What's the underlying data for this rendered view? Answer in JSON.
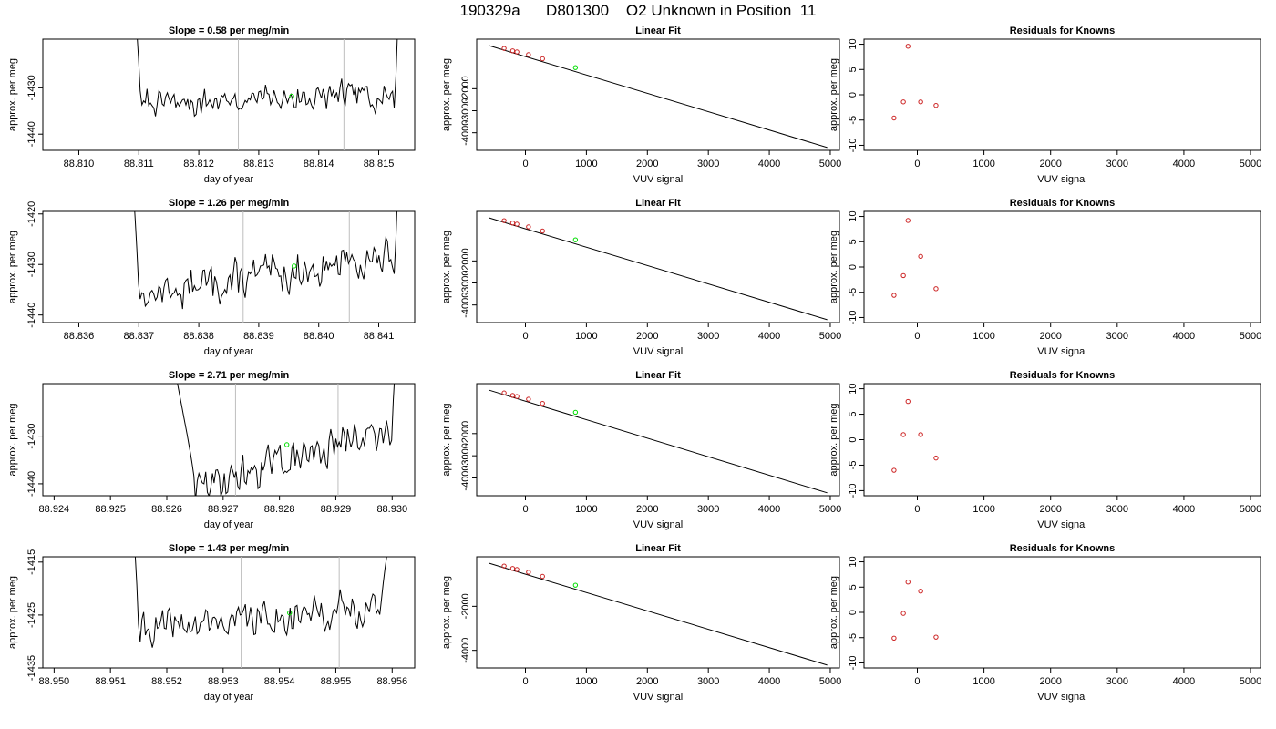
{
  "page": {
    "title": "190329a      D801300    O2 Unknown in Position  11"
  },
  "chart_data": [
    {
      "type": "line",
      "panel": "trace",
      "title": "Slope =  0.58  per meg/min",
      "xlabel": "day of year",
      "ylabel": "approx. per meg",
      "xlim": [
        88.8094,
        88.8156
      ],
      "ylim": [
        -1443.5,
        -1419.5
      ],
      "xticks": [
        88.81,
        88.811,
        88.812,
        88.813,
        88.814,
        88.815
      ],
      "xtick_labels": [
        "88.810",
        "88.811",
        "88.812",
        "88.813",
        "88.814",
        "88.815"
      ],
      "yticks": [
        -1440,
        -1430
      ],
      "ytick_labels": [
        "-1440",
        "-1430"
      ],
      "vlines": [
        88.81266,
        88.81442
      ],
      "trace_start": 88.8106,
      "trace_end": 88.8154,
      "flat_start": 88.81103,
      "flat_end": 88.81528,
      "baseline_start": -1433.5,
      "baseline_end": -1431.5,
      "noise": 2.2,
      "seed": 7,
      "unknown_point": {
        "x": 88.81355,
        "y": -1431.8
      }
    },
    {
      "type": "scatter",
      "panel": "fit",
      "title": "Linear Fit",
      "xlabel": "VUV signal",
      "ylabel": "approx. per meg",
      "xlim": [
        -800,
        5150
      ],
      "ylim": [
        -4800,
        250
      ],
      "xticks": [
        0,
        1000,
        2000,
        3000,
        4000,
        5000
      ],
      "xtick_labels": [
        "0",
        "1000",
        "2000",
        "3000",
        "4000",
        "5000"
      ],
      "yticks": [
        -4000,
        -3000,
        -2000
      ],
      "ytick_labels": [
        "-4000",
        "-3000",
        "-2000"
      ],
      "fit_line": {
        "x": [
          -600,
          4950
        ],
        "y": [
          -40,
          -4670
        ]
      },
      "known_points": {
        "x": [
          -350,
          -210,
          -140,
          50,
          280
        ],
        "y": [
          -170,
          -280,
          -330,
          -450,
          -640
        ]
      },
      "unknown_point": {
        "x": 820,
        "y": -1040
      }
    },
    {
      "type": "scatter",
      "panel": "residuals",
      "title": "Residuals for Knowns",
      "xlabel": "VUV signal",
      "ylabel": "approx. per meg",
      "xlim": [
        -800,
        5150
      ],
      "ylim": [
        -11,
        11
      ],
      "xticks": [
        0,
        1000,
        2000,
        3000,
        4000,
        5000
      ],
      "xtick_labels": [
        "0",
        "1000",
        "2000",
        "3000",
        "4000",
        "5000"
      ],
      "yticks": [
        -10,
        -5,
        0,
        5,
        10
      ],
      "ytick_labels": [
        "-10",
        "-5",
        "0",
        "5",
        "10"
      ],
      "points": {
        "x": [
          -350,
          -210,
          -140,
          50,
          280
        ],
        "y": [
          -4.6,
          -1.4,
          9.6,
          -1.4,
          -2.1
        ]
      }
    },
    {
      "type": "line",
      "panel": "trace",
      "title": "Slope =  1.26  per meg/min",
      "xlabel": "day of year",
      "ylabel": "approx. per meg",
      "xlim": [
        88.8354,
        88.8416
      ],
      "ylim": [
        -1441.5,
        -1419.5
      ],
      "xticks": [
        88.836,
        88.837,
        88.838,
        88.839,
        88.84,
        88.841
      ],
      "xtick_labels": [
        "88.836",
        "88.837",
        "88.838",
        "88.839",
        "88.840",
        "88.841"
      ],
      "yticks": [
        -1440,
        -1430,
        -1420
      ],
      "ytick_labels": [
        "-1440",
        "-1430",
        "-1420"
      ],
      "vlines": [
        88.83874,
        88.84051
      ],
      "trace_start": 88.8366,
      "trace_end": 88.8414,
      "flat_start": 88.837,
      "flat_end": 88.84128,
      "baseline_start": -1436.0,
      "baseline_end": -1428.5,
      "noise": 2.6,
      "seed": 13,
      "unknown_point": {
        "x": 88.83959,
        "y": -1430.3
      }
    },
    {
      "type": "scatter",
      "panel": "fit",
      "title": "Linear Fit",
      "xlabel": "VUV signal",
      "ylabel": "approx. per meg",
      "xlim": [
        -800,
        5150
      ],
      "ylim": [
        -4800,
        250
      ],
      "xticks": [
        0,
        1000,
        2000,
        3000,
        4000,
        5000
      ],
      "xtick_labels": [
        "0",
        "1000",
        "2000",
        "3000",
        "4000",
        "5000"
      ],
      "yticks": [
        -4000,
        -3000,
        -2000
      ],
      "ytick_labels": [
        "-4000",
        "-3000",
        "-2000"
      ],
      "fit_line": {
        "x": [
          -600,
          4950
        ],
        "y": [
          -40,
          -4670
        ]
      },
      "known_points": {
        "x": [
          -350,
          -210,
          -140,
          50,
          280
        ],
        "y": [
          -170,
          -280,
          -330,
          -450,
          -640
        ]
      },
      "unknown_point": {
        "x": 820,
        "y": -1040
      }
    },
    {
      "type": "scatter",
      "panel": "residuals",
      "title": "Residuals for Knowns",
      "xlabel": "VUV signal",
      "ylabel": "approx. per meg",
      "xlim": [
        -800,
        5150
      ],
      "ylim": [
        -11,
        11
      ],
      "xticks": [
        0,
        1000,
        2000,
        3000,
        4000,
        5000
      ],
      "xtick_labels": [
        "0",
        "1000",
        "2000",
        "3000",
        "4000",
        "5000"
      ],
      "yticks": [
        -10,
        -5,
        0,
        5,
        10
      ],
      "ytick_labels": [
        "-10",
        "-5",
        "0",
        "5",
        "10"
      ],
      "points": {
        "x": [
          -350,
          -210,
          -140,
          50,
          280
        ],
        "y": [
          -5.6,
          -1.7,
          9.2,
          2.1,
          -4.3
        ]
      }
    },
    {
      "type": "line",
      "panel": "trace",
      "title": "Slope =  2.71  per meg/min",
      "xlabel": "day of year",
      "ylabel": "approx. per meg",
      "xlim": [
        88.9238,
        88.9304
      ],
      "ylim": [
        -1442.5,
        -1419.0
      ],
      "xticks": [
        88.924,
        88.925,
        88.926,
        88.927,
        88.928,
        88.929,
        88.93
      ],
      "xtick_labels": [
        "88.924",
        "88.925",
        "88.926",
        "88.927",
        "88.928",
        "88.929",
        "88.930"
      ],
      "yticks": [
        -1440,
        -1430
      ],
      "ytick_labels": [
        "-1440",
        "-1430"
      ],
      "vlines": [
        88.92722,
        88.92904
      ],
      "trace_start": 88.9251,
      "trace_end": 88.9302,
      "flat_start": 88.9265,
      "flat_end": 88.93,
      "baseline_start": -1441.0,
      "baseline_end": -1428.5,
      "noise": 2.6,
      "seed": 29,
      "unknown_point": {
        "x": 88.92813,
        "y": -1431.8
      }
    },
    {
      "type": "scatter",
      "panel": "fit",
      "title": "Linear Fit",
      "xlabel": "VUV signal",
      "ylabel": "approx. per meg",
      "xlim": [
        -800,
        5150
      ],
      "ylim": [
        -4800,
        250
      ],
      "xticks": [
        0,
        1000,
        2000,
        3000,
        4000,
        5000
      ],
      "xtick_labels": [
        "0",
        "1000",
        "2000",
        "3000",
        "4000",
        "5000"
      ],
      "yticks": [
        -4000,
        -3000,
        -2000
      ],
      "ytick_labels": [
        "-4000",
        "-3000",
        "-2000"
      ],
      "fit_line": {
        "x": [
          -600,
          4950
        ],
        "y": [
          -40,
          -4670
        ]
      },
      "known_points": {
        "x": [
          -350,
          -210,
          -140,
          50,
          280
        ],
        "y": [
          -170,
          -280,
          -330,
          -450,
          -640
        ]
      },
      "unknown_point": {
        "x": 820,
        "y": -1040
      }
    },
    {
      "type": "scatter",
      "panel": "residuals",
      "title": "Residuals for Knowns",
      "xlabel": "VUV signal",
      "ylabel": "approx. per meg",
      "xlim": [
        -800,
        5150
      ],
      "ylim": [
        -11,
        11
      ],
      "xticks": [
        0,
        1000,
        2000,
        3000,
        4000,
        5000
      ],
      "xtick_labels": [
        "0",
        "1000",
        "2000",
        "3000",
        "4000",
        "5000"
      ],
      "yticks": [
        -10,
        -5,
        0,
        5,
        10
      ],
      "ytick_labels": [
        "-10",
        "-5",
        "0",
        "5",
        "10"
      ],
      "points": {
        "x": [
          -350,
          -210,
          -140,
          50,
          280
        ],
        "y": [
          -6.0,
          1.0,
          7.5,
          1.0,
          -3.6
        ]
      }
    },
    {
      "type": "line",
      "panel": "trace",
      "title": "Slope =  1.43  per meg/min",
      "xlabel": "day of year",
      "ylabel": "approx. per meg",
      "xlim": [
        88.9498,
        88.9564
      ],
      "ylim": [
        -1435.0,
        -1414.0
      ],
      "xticks": [
        88.95,
        88.951,
        88.952,
        88.953,
        88.954,
        88.955,
        88.956
      ],
      "xtick_labels": [
        "88.950",
        "88.951",
        "88.952",
        "88.953",
        "88.954",
        "88.955",
        "88.956"
      ],
      "yticks": [
        -1435,
        -1425,
        -1415
      ],
      "ytick_labels": [
        "-1435",
        "-1425",
        "-1415"
      ],
      "vlines": [
        88.95332,
        88.95506
      ],
      "trace_start": 88.9511,
      "trace_end": 88.9563,
      "flat_start": 88.9515,
      "flat_end": 88.9558,
      "baseline_start": -1428.0,
      "baseline_end": -1423.5,
      "noise": 2.2,
      "seed": 41,
      "unknown_point": {
        "x": 88.95418,
        "y": -1424.6
      }
    },
    {
      "type": "scatter",
      "panel": "fit",
      "title": "Linear Fit",
      "xlabel": "VUV signal",
      "ylabel": "approx. per meg",
      "xlim": [
        -800,
        5150
      ],
      "ylim": [
        -4800,
        250
      ],
      "xticks": [
        0,
        1000,
        2000,
        3000,
        4000,
        5000
      ],
      "xtick_labels": [
        "0",
        "1000",
        "2000",
        "3000",
        "4000",
        "5000"
      ],
      "yticks": [
        -4000,
        -2000
      ],
      "ytick_labels": [
        "-4000",
        "-2000"
      ],
      "fit_line": {
        "x": [
          -600,
          4950
        ],
        "y": [
          -40,
          -4670
        ]
      },
      "known_points": {
        "x": [
          -350,
          -210,
          -140,
          50,
          280
        ],
        "y": [
          -170,
          -280,
          -330,
          -450,
          -640
        ]
      },
      "unknown_point": {
        "x": 820,
        "y": -1040
      }
    },
    {
      "type": "scatter",
      "panel": "residuals",
      "title": "Residuals for Knowns",
      "xlabel": "VUV signal",
      "ylabel": "approx. per meg",
      "xlim": [
        -800,
        5150
      ],
      "ylim": [
        -11,
        11
      ],
      "xticks": [
        0,
        1000,
        2000,
        3000,
        4000,
        5000
      ],
      "xtick_labels": [
        "0",
        "1000",
        "2000",
        "3000",
        "4000",
        "5000"
      ],
      "yticks": [
        -10,
        -5,
        0,
        5,
        10
      ],
      "ytick_labels": [
        "-10",
        "-5",
        "0",
        "5",
        "10"
      ],
      "points": {
        "x": [
          -350,
          -210,
          -140,
          50,
          280
        ],
        "y": [
          -5.1,
          -0.2,
          6.0,
          4.2,
          -4.9
        ]
      }
    }
  ],
  "colors": {
    "axis": "#000000",
    "trace": "#000000",
    "vline": "#bebebe",
    "known": "#cc2222",
    "unknown": "#00dd00"
  }
}
